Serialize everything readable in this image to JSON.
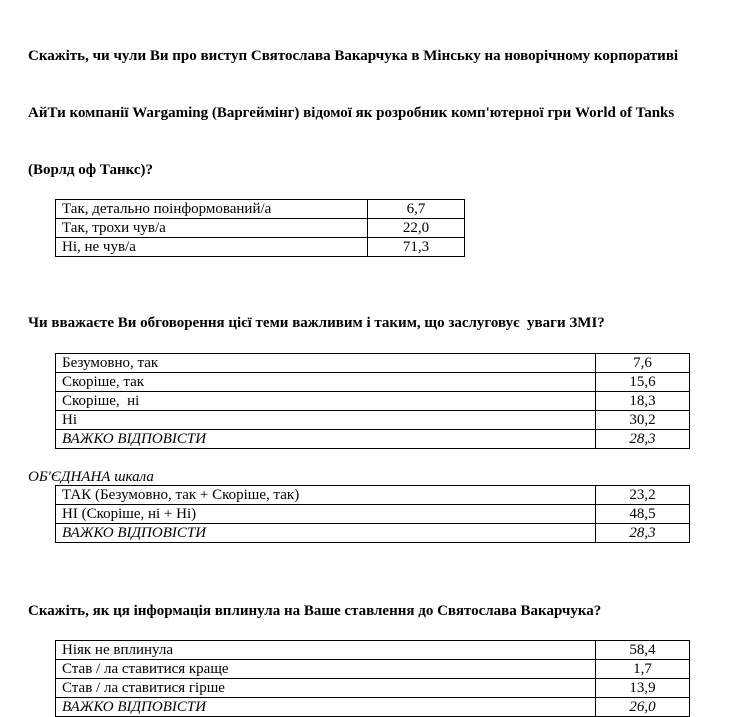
{
  "page": {
    "background_color": "#ffffff",
    "text_color": "#000000",
    "table_border_color": "#000000"
  },
  "questions": [
    {
      "title_lines": [
        "Скажіть, чи чули Ви про виступ Святослава Вакарчука в Мінську на новорічному корпоративі",
        "АйТи компанії Wargaming (Варгеймінг) відомої як розробник комп'ютерної гри World of Tanks",
        "(Ворлд оф Танкс)?"
      ],
      "rows": [
        {
          "label": "Так, детально поінформований/а",
          "value": "6,7"
        },
        {
          "label": "Так, трохи чув/а",
          "value": "22,0"
        },
        {
          "label": "Ні, не чув/а",
          "value": "71,3"
        }
      ]
    },
    {
      "title_lines": [
        "Чи вважаєте Ви обговорення цієї теми важливим і таким, що заслуговує  уваги ЗМІ?"
      ],
      "rows": [
        {
          "label": "Безумовно, так",
          "value": "7,6"
        },
        {
          "label": "Скоріше, так",
          "value": "15,6"
        },
        {
          "label": "Скоріше,  ні",
          "value": "18,3"
        },
        {
          "label": "Ні",
          "value": "30,2"
        },
        {
          "label": "ВАЖКО ВІДПОВІСТИ",
          "value": "28,3",
          "italic": true
        }
      ]
    },
    {
      "subtitle": "ОБ'ЄДНАНА шкала",
      "rows": [
        {
          "label": "ТАК (Безумовно, так + Скоріше, так)",
          "value": "23,2"
        },
        {
          "label": "НІ (Скоріше, ні + Ні)",
          "value": "48,5"
        },
        {
          "label": "ВАЖКО ВІДПОВІСТИ",
          "value": "28,3",
          "italic": true
        }
      ]
    },
    {
      "title_lines": [
        "Скажіть, як ця інформація вплинула на Ваше ставлення до Святослава Вакарчука?"
      ],
      "rows": [
        {
          "label": "Ніяк не вплинула",
          "value": "58,4"
        },
        {
          "label": "Став / ла ставитися краще",
          "value": "1,7"
        },
        {
          "label": "Став / ла ставитися гірше",
          "value": "13,9"
        },
        {
          "label": "ВАЖКО ВІДПОВІСТИ",
          "value": "26,0",
          "italic": true
        }
      ]
    }
  ]
}
